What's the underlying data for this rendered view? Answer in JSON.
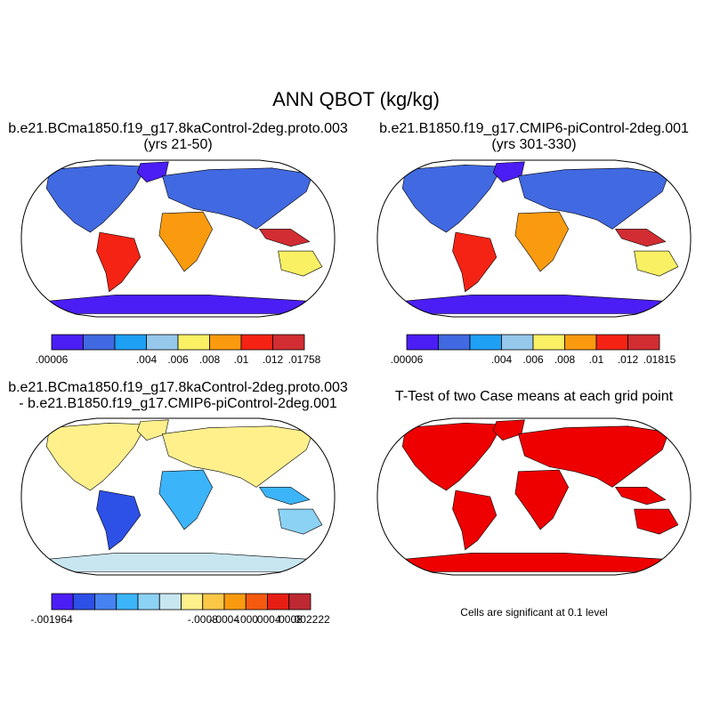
{
  "title": "ANN QBOT (kg/kg)",
  "panels": [
    {
      "id": "case1",
      "title_line1": "b.e21.BCma1850.f19_g17.8kaControl-2deg.proto.003",
      "title_line2": "(yrs 21-50)",
      "colorbar": {
        "colors": [
          "#4b1ef5",
          "#4169e1",
          "#1ea0f5",
          "#96c8eb",
          "#faf064",
          "#fa9b0f",
          "#f52314",
          "#d22d32"
        ],
        "labels": [
          ".00006",
          ".004",
          ".006",
          ".008",
          ".01",
          ".012",
          ".01758"
        ]
      }
    },
    {
      "id": "case2",
      "title_line1": "b.e21.B1850.f19_g17.CMIP6-piControl-2deg.001",
      "title_line2": "(yrs 301-330)",
      "colorbar": {
        "colors": [
          "#4b1ef5",
          "#4169e1",
          "#1ea0f5",
          "#96c8eb",
          "#faf064",
          "#fa9b0f",
          "#f52314",
          "#d22d32"
        ],
        "labels": [
          ".00006",
          ".004",
          ".006",
          ".008",
          ".01",
          ".012",
          ".01815"
        ]
      }
    },
    {
      "id": "diff",
      "title_line1": "b.e21.BCma1850.f19_g17.8kaControl-2deg.proto.003",
      "title_line2": "- b.e21.B1850.f19_g17.CMIP6-piControl-2deg.001",
      "colorbar": {
        "colors": [
          "#4b1ef5",
          "#2d50e6",
          "#4682f0",
          "#3cb4fa",
          "#8cd2f5",
          "#c8e6f0",
          "#fff08c",
          "#fac846",
          "#fa9b0f",
          "#f55a0f",
          "#e61e14",
          "#be2832"
        ],
        "labels": [
          "-.001964",
          "-.0008",
          "-.0004",
          "-.000",
          ".0004",
          ".0008",
          ".002222"
        ]
      }
    },
    {
      "id": "ttest",
      "title_line1": "T-Test of two Case means at each grid point",
      "note": "Cells are significant at 0.1 level",
      "sig_color": "#ee0000"
    }
  ]
}
